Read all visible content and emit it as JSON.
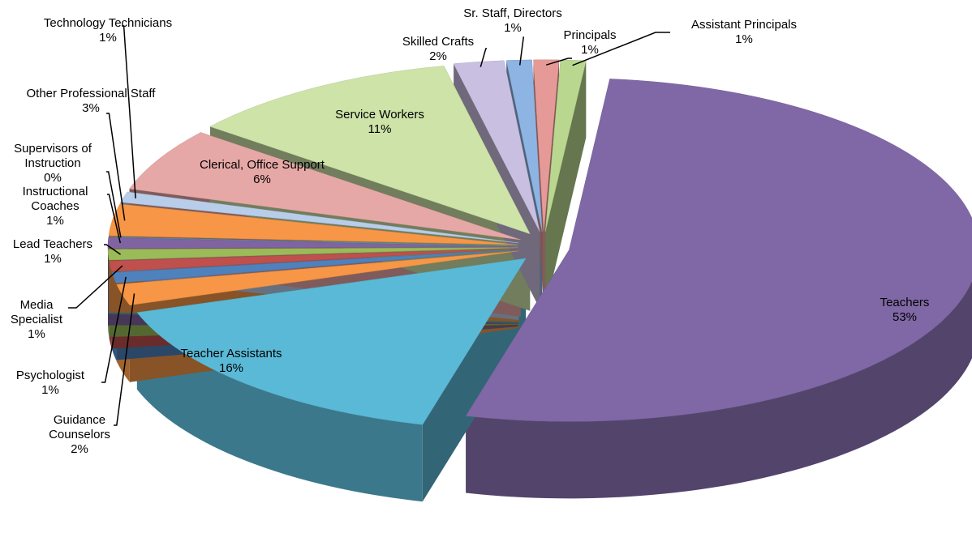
{
  "chart_data": {
    "type": "pie3d",
    "categories": [
      "Sr. Staff, Directors",
      "Principals",
      "Assistant Principals",
      "Teachers",
      "Teacher Assistants",
      "Guidance Counselors",
      "Psychologist",
      "Media Specialist",
      "Lead Teachers",
      "Instructional Coaches",
      "Supervisors of Instruction",
      "Other Professional Staff",
      "Technology Technicians",
      "Clerical, Office Support",
      "Service Workers",
      "Skilled Crafts"
    ],
    "values": [
      1,
      1,
      1,
      53,
      16,
      2,
      1,
      1,
      1,
      1,
      0,
      3,
      1,
      6,
      11,
      2
    ],
    "value_labels": [
      "1%",
      "1%",
      "1%",
      "53%",
      "16%",
      "2%",
      "1%",
      "1%",
      "1%",
      "1%",
      "0%",
      "3%",
      "1%",
      "6%",
      "11%",
      "2%"
    ],
    "colors": [
      "#8eb4e3",
      "#e69a98",
      "#b9d78f",
      "#8068a6",
      "#5ab9d6",
      "#f79646",
      "#4f81bd",
      "#c0504d",
      "#9bbb59",
      "#8064a2",
      "#4bacc6",
      "#f79646",
      "#b8cde9",
      "#e6a8a6",
      "#cde3a8",
      "#c9bfe0"
    ]
  }
}
